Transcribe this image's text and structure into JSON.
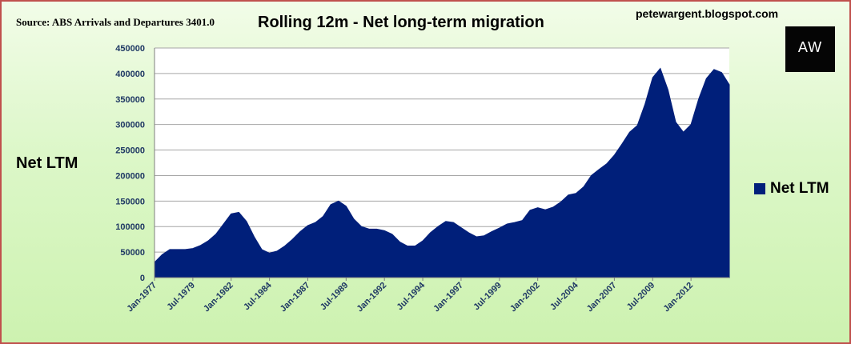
{
  "header": {
    "source": "Source: ABS Arrivals and Departures 3401.0",
    "title": "Rolling 12m - Net long-term migration",
    "blog": "petewargent.blogspot.com",
    "logo_text": "AW"
  },
  "colors": {
    "series": "#001f7a",
    "plot_bg": "#ffffff",
    "gridline": "#a6a6a6",
    "border": "#c0504d"
  },
  "chart_data": {
    "type": "area",
    "title": "Rolling 12m - Net long-term migration",
    "xlabel": "",
    "ylabel": "Net LTM",
    "ylim": [
      0,
      450000
    ],
    "yticks": [
      0,
      50000,
      100000,
      150000,
      200000,
      250000,
      300000,
      350000,
      400000,
      450000
    ],
    "xticks": [
      "Jan-1977",
      "Jul-1979",
      "Jan-1982",
      "Jul-1984",
      "Jan-1987",
      "Jul-1989",
      "Jan-1992",
      "Jul-1994",
      "Jan-1997",
      "Jul-1999",
      "Jan-2002",
      "Jul-2004",
      "Jan-2007",
      "Jul-2009",
      "Jan-2012"
    ],
    "grid": true,
    "legend_position": "right",
    "series": [
      {
        "name": "Net LTM",
        "x": [
          "Jan-1977",
          "Jul-1977",
          "Jan-1978",
          "Jul-1978",
          "Jan-1979",
          "Jul-1979",
          "Jan-1980",
          "Jul-1980",
          "Jan-1981",
          "Jul-1981",
          "Jan-1982",
          "Jul-1982",
          "Jan-1983",
          "Jul-1983",
          "Jan-1984",
          "Jul-1984",
          "Jan-1985",
          "Jul-1985",
          "Jan-1986",
          "Jul-1986",
          "Jan-1987",
          "Jul-1987",
          "Jan-1988",
          "Jul-1988",
          "Jan-1989",
          "Jul-1989",
          "Jan-1990",
          "Jul-1990",
          "Jan-1991",
          "Jul-1991",
          "Jan-1992",
          "Jul-1992",
          "Jan-1993",
          "Jul-1993",
          "Jan-1994",
          "Jul-1994",
          "Jan-1995",
          "Jul-1995",
          "Jan-1996",
          "Jul-1996",
          "Jan-1997",
          "Jul-1997",
          "Jan-1998",
          "Jul-1998",
          "Jan-1999",
          "Jul-1999",
          "Jan-2000",
          "Jul-2000",
          "Jan-2001",
          "Jul-2001",
          "Jan-2002",
          "Jul-2002",
          "Jan-2003",
          "Jul-2003",
          "Jan-2004",
          "Jul-2004",
          "Jan-2005",
          "Jul-2005",
          "Jan-2006",
          "Jul-2006",
          "Jan-2007",
          "Jul-2007",
          "Jan-2008",
          "Jul-2008",
          "Jan-2009",
          "Jul-2009",
          "Jan-2010",
          "Jul-2010",
          "Jan-2011",
          "Jul-2011",
          "Jan-2012",
          "Jul-2012",
          "Jan-2013",
          "Jul-2013",
          "Jan-2014",
          "Jul-2014"
        ],
        "values": [
          30000,
          45000,
          55000,
          55000,
          55000,
          57000,
          63000,
          72000,
          85000,
          105000,
          125000,
          128000,
          110000,
          80000,
          55000,
          48000,
          52000,
          62000,
          75000,
          90000,
          102000,
          108000,
          120000,
          143000,
          150000,
          140000,
          115000,
          100000,
          95000,
          95000,
          92000,
          85000,
          70000,
          62000,
          62000,
          72000,
          88000,
          100000,
          110000,
          108000,
          98000,
          88000,
          80000,
          82000,
          90000,
          97000,
          105000,
          108000,
          112000,
          132000,
          137000,
          133000,
          138000,
          148000,
          162000,
          165000,
          178000,
          200000,
          212000,
          223000,
          240000,
          262000,
          285000,
          298000,
          340000,
          392000,
          410000,
          368000,
          305000,
          285000,
          300000,
          350000,
          390000,
          408000,
          402000,
          378000
        ]
      }
    ]
  },
  "legend": {
    "label": "Net LTM"
  }
}
